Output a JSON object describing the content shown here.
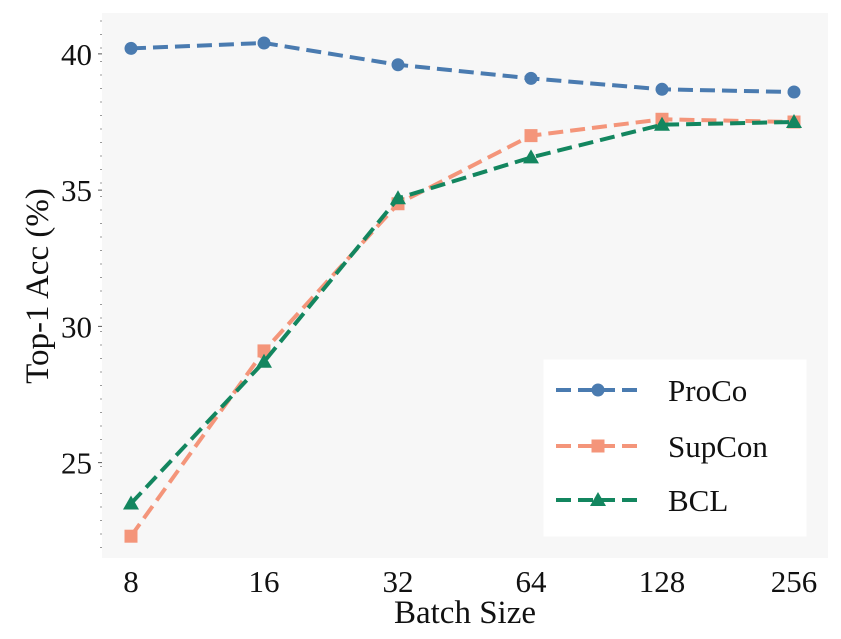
{
  "chart_data": {
    "type": "line",
    "xlabel": "Batch Size",
    "ylabel": "Top-1 Acc (%)",
    "categories": [
      "8",
      "16",
      "32",
      "64",
      "128",
      "256"
    ],
    "ylim": [
      21.5,
      41.5
    ],
    "yticks": [
      25,
      30,
      35,
      40
    ],
    "grid": false,
    "legend_position": "lower-right",
    "series": [
      {
        "name": "ProCo",
        "color": "#4a7bb0",
        "marker": "circle",
        "values": [
          40.2,
          40.4,
          39.6,
          39.1,
          38.7,
          38.6
        ]
      },
      {
        "name": "SupCon",
        "color": "#f4957a",
        "marker": "square",
        "values": [
          22.3,
          29.1,
          34.5,
          37.0,
          37.6,
          37.5
        ]
      },
      {
        "name": "BCL",
        "color": "#13865f",
        "marker": "triangle",
        "values": [
          23.5,
          28.7,
          34.7,
          36.2,
          37.4,
          37.5
        ]
      }
    ]
  }
}
